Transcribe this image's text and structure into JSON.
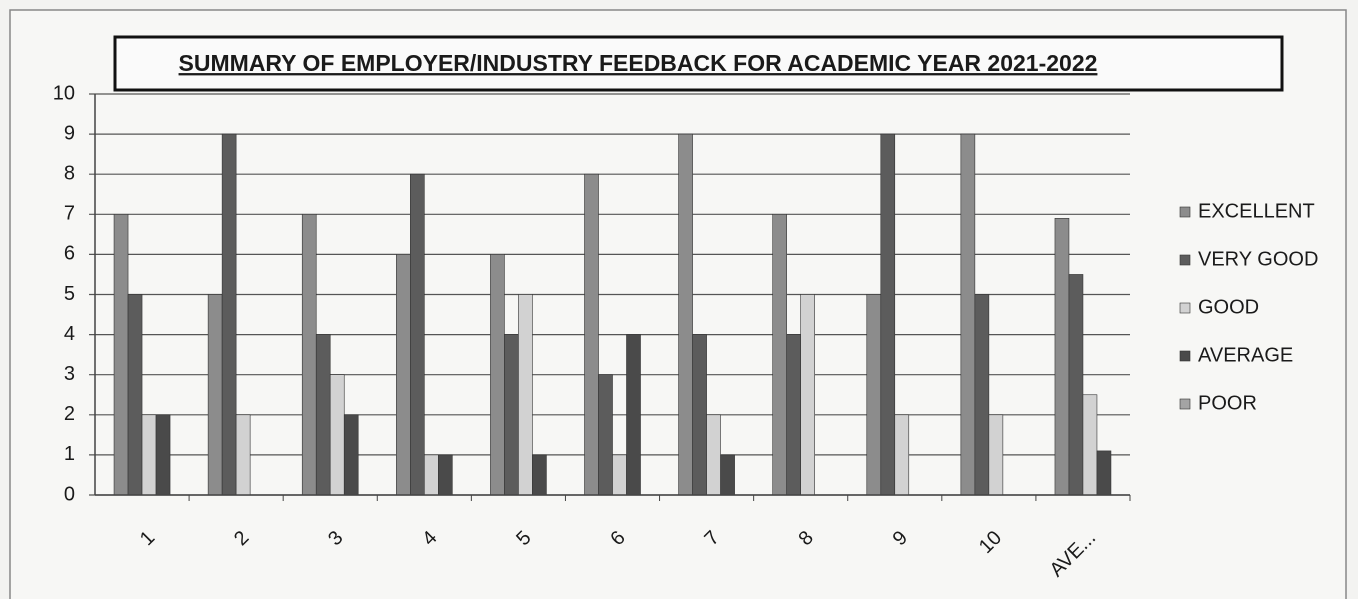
{
  "chart_data": {
    "type": "bar",
    "title": "SUMMARY OF EMPLOYER/INDUSTRY FEEDBACK FOR  ACADEMIC YEAR 2021-2022",
    "categories": [
      "1",
      "2",
      "3",
      "4",
      "5",
      "6",
      "7",
      "8",
      "9",
      "10",
      "AVE..."
    ],
    "series": [
      {
        "name": "EXCELLENT",
        "color": "#8c8c8c",
        "values": [
          7,
          5,
          7,
          6,
          6,
          8,
          9,
          7,
          5,
          9,
          6.9
        ]
      },
      {
        "name": "VERY GOOD",
        "color": "#5c5c5c",
        "values": [
          5,
          9,
          4,
          8,
          4,
          3,
          4,
          4,
          9,
          5,
          5.5
        ]
      },
      {
        "name": "GOOD",
        "color": "#d2d2d2",
        "values": [
          2,
          2,
          3,
          1,
          5,
          1,
          2,
          5,
          2,
          2,
          2.5
        ]
      },
      {
        "name": "AVERAGE",
        "color": "#4a4a4a",
        "values": [
          2,
          0,
          2,
          1,
          1,
          4,
          1,
          0,
          0,
          0,
          1.1
        ]
      },
      {
        "name": "POOR",
        "color": "#a4a4a4",
        "values": [
          0,
          0,
          0,
          0,
          0,
          0,
          0,
          0,
          0,
          0,
          0
        ]
      }
    ],
    "ylim": [
      0,
      10
    ],
    "yticks": [
      0,
      1,
      2,
      3,
      4,
      5,
      6,
      7,
      8,
      9,
      10
    ],
    "grid": true,
    "legend": "right"
  }
}
